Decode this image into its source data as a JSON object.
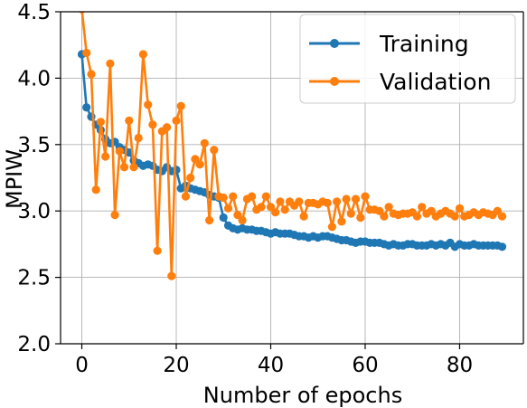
{
  "chart_data": {
    "type": "line",
    "xlabel": "Number of epochs",
    "ylabel": "MPIW",
    "xlim": [
      -4.5,
      93.5
    ],
    "ylim": [
      2.0,
      4.5
    ],
    "xticks": [
      0,
      20,
      40,
      60,
      80
    ],
    "yticks": [
      2.0,
      2.5,
      3.0,
      3.5,
      4.0,
      4.5
    ],
    "xtick_labels": [
      "0",
      "20",
      "40",
      "60",
      "80"
    ],
    "ytick_labels": [
      "2.0",
      "2.5",
      "3.0",
      "3.5",
      "4.0",
      "4.5"
    ],
    "grid": true,
    "legend_position": "top-right",
    "series": [
      {
        "name": "Training",
        "color": "#1f77b4",
        "x": [
          0,
          1,
          2,
          3,
          4,
          5,
          6,
          7,
          8,
          9,
          10,
          11,
          12,
          13,
          14,
          15,
          16,
          17,
          18,
          19,
          20,
          21,
          22,
          23,
          24,
          25,
          26,
          27,
          28,
          29,
          30,
          31,
          32,
          33,
          34,
          35,
          36,
          37,
          38,
          39,
          40,
          41,
          42,
          43,
          44,
          45,
          46,
          47,
          48,
          49,
          50,
          51,
          52,
          53,
          54,
          55,
          56,
          57,
          58,
          59,
          60,
          61,
          62,
          63,
          64,
          65,
          66,
          67,
          68,
          69,
          70,
          71,
          72,
          73,
          74,
          75,
          76,
          77,
          78,
          79,
          80,
          81,
          82,
          83,
          84,
          85,
          86,
          87,
          88,
          89
        ],
        "values": [
          4.18,
          3.78,
          3.71,
          3.65,
          3.61,
          3.54,
          3.51,
          3.52,
          3.48,
          3.46,
          3.44,
          3.38,
          3.36,
          3.34,
          3.35,
          3.34,
          3.31,
          3.3,
          3.33,
          3.3,
          3.31,
          3.17,
          3.19,
          3.17,
          3.16,
          3.15,
          3.14,
          3.12,
          3.11,
          3.1,
          2.95,
          2.89,
          2.87,
          2.86,
          2.87,
          2.86,
          2.86,
          2.85,
          2.85,
          2.84,
          2.83,
          2.84,
          2.83,
          2.83,
          2.83,
          2.82,
          2.81,
          2.81,
          2.8,
          2.81,
          2.8,
          2.81,
          2.81,
          2.8,
          2.79,
          2.78,
          2.78,
          2.77,
          2.76,
          2.77,
          2.77,
          2.76,
          2.76,
          2.76,
          2.75,
          2.74,
          2.75,
          2.74,
          2.74,
          2.75,
          2.75,
          2.74,
          2.74,
          2.74,
          2.75,
          2.74,
          2.75,
          2.74,
          2.76,
          2.73,
          2.75,
          2.74,
          2.74,
          2.75,
          2.74,
          2.74,
          2.74,
          2.74,
          2.74,
          2.73
        ]
      },
      {
        "name": "Validation",
        "color": "#ff7f0e",
        "x": [
          0,
          1,
          2,
          3,
          4,
          5,
          6,
          7,
          8,
          9,
          10,
          11,
          12,
          13,
          14,
          15,
          16,
          17,
          18,
          19,
          20,
          21,
          22,
          23,
          24,
          25,
          26,
          27,
          28,
          29,
          30,
          31,
          32,
          33,
          34,
          35,
          36,
          37,
          38,
          39,
          40,
          41,
          42,
          43,
          44,
          45,
          46,
          47,
          48,
          49,
          50,
          51,
          52,
          53,
          54,
          55,
          56,
          57,
          58,
          59,
          60,
          61,
          62,
          63,
          64,
          65,
          66,
          67,
          68,
          69,
          70,
          71,
          72,
          73,
          74,
          75,
          76,
          77,
          78,
          79,
          80,
          81,
          82,
          83,
          84,
          85,
          86,
          87,
          88,
          89
        ],
        "values": [
          4.52,
          4.19,
          4.03,
          3.16,
          3.67,
          3.41,
          4.11,
          2.97,
          3.45,
          3.33,
          3.68,
          3.33,
          3.55,
          4.18,
          3.8,
          3.65,
          2.7,
          3.6,
          3.63,
          2.51,
          3.68,
          3.79,
          3.11,
          3.25,
          3.39,
          3.35,
          3.51,
          2.93,
          3.46,
          3.11,
          3.1,
          3.02,
          3.11,
          2.97,
          2.93,
          3.09,
          3.11,
          3.01,
          3.03,
          3.11,
          3.03,
          2.99,
          3.07,
          3.01,
          3.07,
          3.04,
          3.07,
          2.96,
          3.06,
          3.06,
          3.05,
          3.07,
          3.06,
          2.88,
          3.07,
          2.92,
          3.09,
          2.98,
          3.09,
          2.95,
          3.11,
          3.01,
          3.01,
          3.0,
          2.96,
          3.03,
          2.98,
          2.97,
          2.98,
          2.98,
          2.99,
          2.96,
          3.03,
          2.98,
          3.0,
          2.96,
          2.98,
          3.0,
          2.98,
          2.96,
          3.02,
          2.96,
          2.97,
          2.99,
          2.97,
          2.99,
          2.98,
          2.97,
          3.0,
          2.96
        ]
      }
    ]
  }
}
